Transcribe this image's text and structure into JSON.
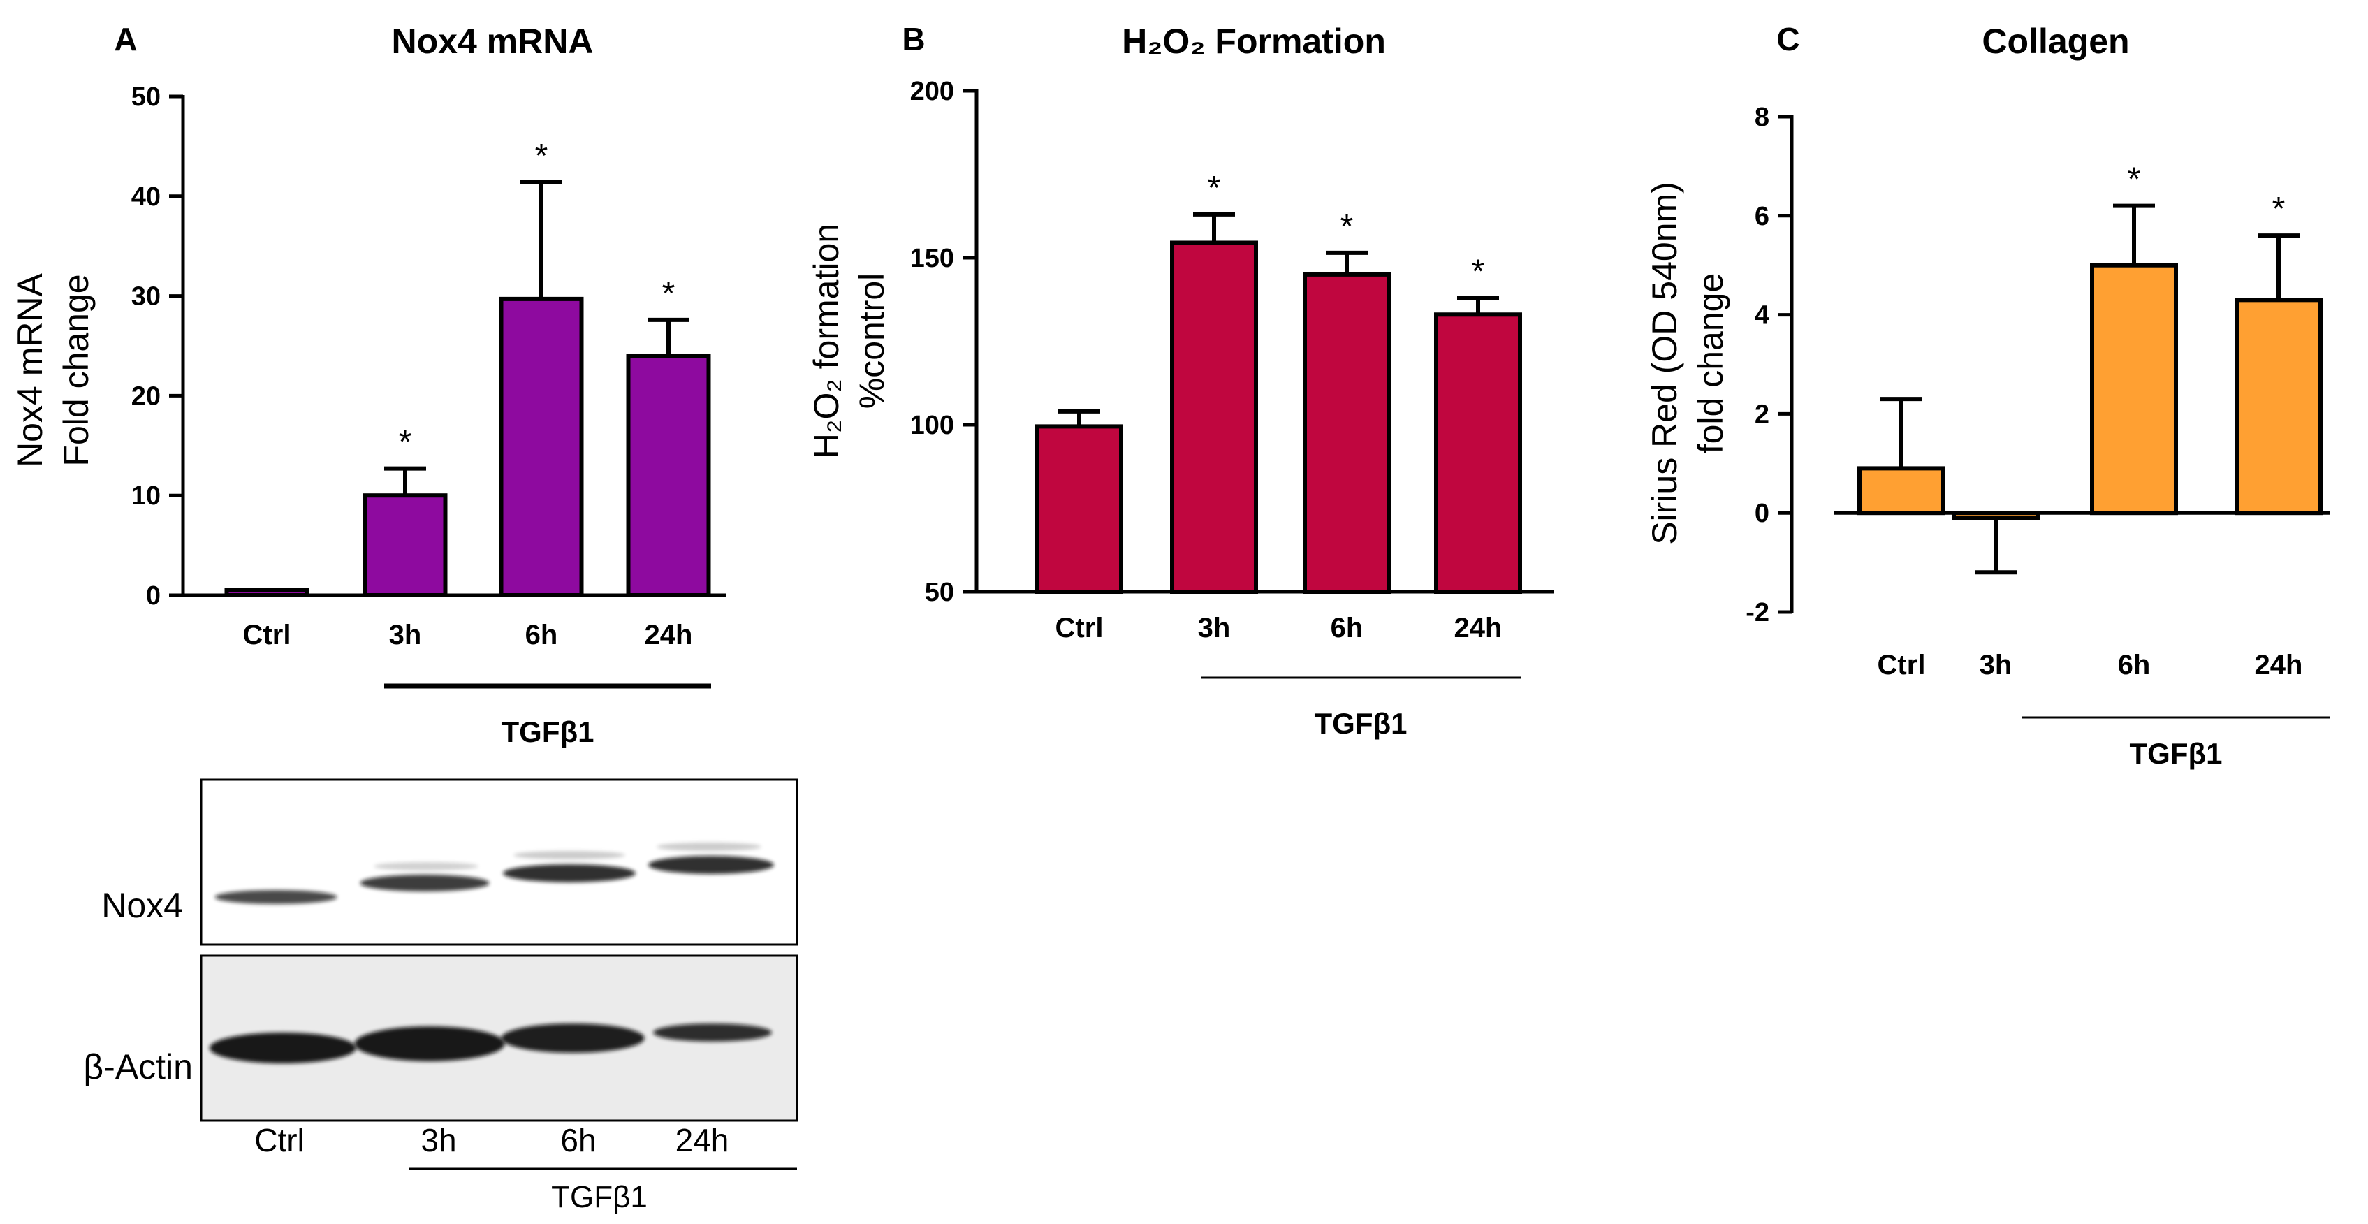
{
  "chart_data": [
    {
      "panel": "A",
      "type": "bar",
      "title": "Nox4 mRNA",
      "ylabel": [
        "Nox4 mRNA",
        "Fold change"
      ],
      "categories": [
        "Ctrl",
        "3h",
        "6h",
        "24h"
      ],
      "values": [
        0.5,
        10,
        29.7,
        24
      ],
      "errors": [
        0,
        2.7,
        11.7,
        3.6
      ],
      "significant": [
        false,
        true,
        true,
        true
      ],
      "significance_marker": "*",
      "ylim": [
        0,
        50
      ],
      "yticks": [
        0,
        10,
        20,
        30,
        40,
        50
      ],
      "group_label": "TGFβ1",
      "group_span": [
        "3h",
        "24h"
      ],
      "color": "#8e0a9f"
    },
    {
      "panel": "B",
      "type": "bar",
      "title": "H₂O₂ Formation",
      "ylabel": [
        "H₂O₂ formation",
        "%control"
      ],
      "categories": [
        "Ctrl",
        "3h",
        "6h",
        "24h"
      ],
      "values": [
        99.5,
        154.5,
        145,
        133
      ],
      "errors": [
        4.5,
        8.5,
        6.5,
        5
      ],
      "significant": [
        false,
        true,
        true,
        true
      ],
      "significance_marker": "*",
      "ylim": [
        50,
        200
      ],
      "yticks": [
        50,
        100,
        150,
        200
      ],
      "group_label": "TGFβ1",
      "group_span": [
        "3h",
        "24h"
      ],
      "color": "#c0063f"
    },
    {
      "panel": "C",
      "type": "bar",
      "title": "Collagen",
      "ylabel": [
        "Sirius Red (OD 540nm)",
        "fold change"
      ],
      "categories": [
        "Ctrl",
        "3h",
        "6h",
        "24h"
      ],
      "values": [
        0.9,
        -0.1,
        5,
        4.3
      ],
      "errors": [
        1.4,
        1.1,
        1.2,
        1.3
      ],
      "significant": [
        false,
        false,
        true,
        true
      ],
      "significance_marker": "*",
      "ylim": [
        -2,
        8
      ],
      "yticks": [
        -2,
        0,
        2,
        4,
        6,
        8
      ],
      "group_label": "TGFβ1",
      "group_span": [
        "3h",
        "24h"
      ],
      "color": "#ffa032"
    }
  ],
  "western_blot": {
    "rows": [
      "Nox4",
      "β-Actin"
    ],
    "lanes": [
      "Ctrl",
      "3h",
      "6h",
      "24h"
    ],
    "group_label": "TGFβ1"
  }
}
